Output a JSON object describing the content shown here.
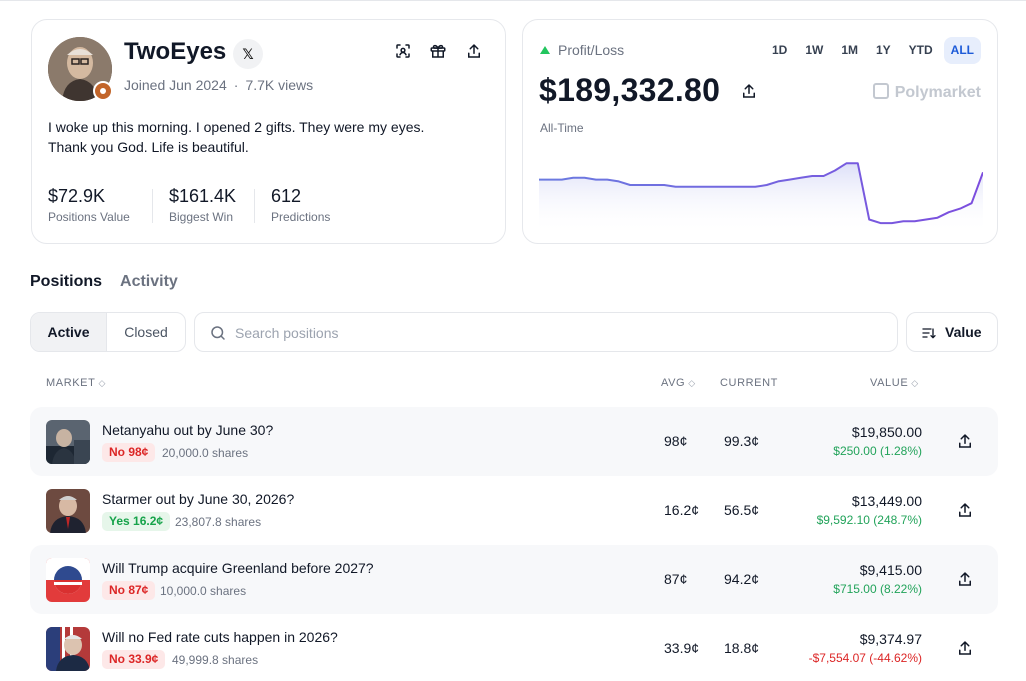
{
  "profile": {
    "username": "TwoEyes",
    "x_label": "𝕏",
    "joined": "Joined Jun 2024",
    "views": "7.7K views",
    "bio_line1": "I woke up this morning. I opened 2 gifts. They were my eyes.",
    "bio_line2": "Thank you God. Life is beautiful.",
    "stats": [
      {
        "value": "$72.9K",
        "label": "Positions Value"
      },
      {
        "value": "$161.4K",
        "label": "Biggest Win"
      },
      {
        "value": "612",
        "label": "Predictions"
      }
    ],
    "icons": [
      "scan-icon",
      "gift-icon",
      "share-icon"
    ]
  },
  "pnl": {
    "label": "Profit/Loss",
    "value": "$189,332.80",
    "period_label": "All-Time",
    "brand": "Polymarket",
    "ranges": [
      "1D",
      "1W",
      "1M",
      "1Y",
      "YTD",
      "ALL"
    ],
    "active_range": "ALL",
    "colors": {
      "line_start": "#6b7be0",
      "line_end": "#7c4dde"
    }
  },
  "chart_data": {
    "type": "line",
    "title": "",
    "xlabel": "",
    "ylabel": "",
    "x": [
      0,
      1,
      2,
      3,
      4,
      5,
      6,
      7,
      8,
      9,
      10,
      11,
      12,
      13,
      14,
      15,
      16,
      17,
      18,
      19,
      20,
      21,
      22,
      23,
      24,
      25,
      26,
      27,
      28,
      29,
      30,
      31,
      32,
      33,
      34,
      35,
      36,
      37,
      38,
      39
    ],
    "values": [
      184,
      184,
      184,
      185,
      185,
      184,
      184,
      183,
      181,
      181,
      181,
      181,
      180,
      180,
      180,
      180,
      180,
      180,
      180,
      180,
      181,
      183,
      184,
      185,
      186,
      186,
      189,
      193,
      193,
      162,
      160,
      160,
      161,
      161,
      162,
      163,
      166,
      168,
      171,
      188
    ],
    "grid": false
  },
  "tabs": {
    "positions": "Positions",
    "activity": "Activity"
  },
  "filters": {
    "active": "Active",
    "closed": "Closed"
  },
  "search": {
    "placeholder": "Search positions"
  },
  "sort": {
    "label": "Value"
  },
  "table": {
    "headers": {
      "market": "MARKET",
      "avg": "AVG",
      "current": "CURRENT",
      "value": "VALUE"
    },
    "rows": [
      {
        "title": "Netanyahu out by June 30?",
        "outcome": "No 98¢",
        "outcome_type": "no",
        "shares": "20,000.0 shares",
        "avg": "98¢",
        "current": "99.3¢",
        "value": "$19,850.00",
        "change": "$250.00 (1.28%)",
        "change_type": "pos"
      },
      {
        "title": "Starmer out by June 30, 2026?",
        "outcome": "Yes 16.2¢",
        "outcome_type": "yes",
        "shares": "23,807.8 shares",
        "avg": "16.2¢",
        "current": "56.5¢",
        "value": "$13,449.00",
        "change": "$9,592.10 (248.7%)",
        "change_type": "pos"
      },
      {
        "title": "Will Trump acquire Greenland before 2027?",
        "outcome": "No 87¢",
        "outcome_type": "no",
        "shares": "10,000.0 shares",
        "avg": "87¢",
        "current": "94.2¢",
        "value": "$9,415.00",
        "change": "$715.00 (8.22%)",
        "change_type": "pos"
      },
      {
        "title": "Will no Fed rate cuts happen in 2026?",
        "outcome": "No 33.9¢",
        "outcome_type": "no",
        "shares": "49,999.8 shares",
        "avg": "33.9¢",
        "current": "18.8¢",
        "value": "$9,374.97",
        "change": "-$7,554.07 (-44.62%)",
        "change_type": "neg"
      }
    ]
  }
}
